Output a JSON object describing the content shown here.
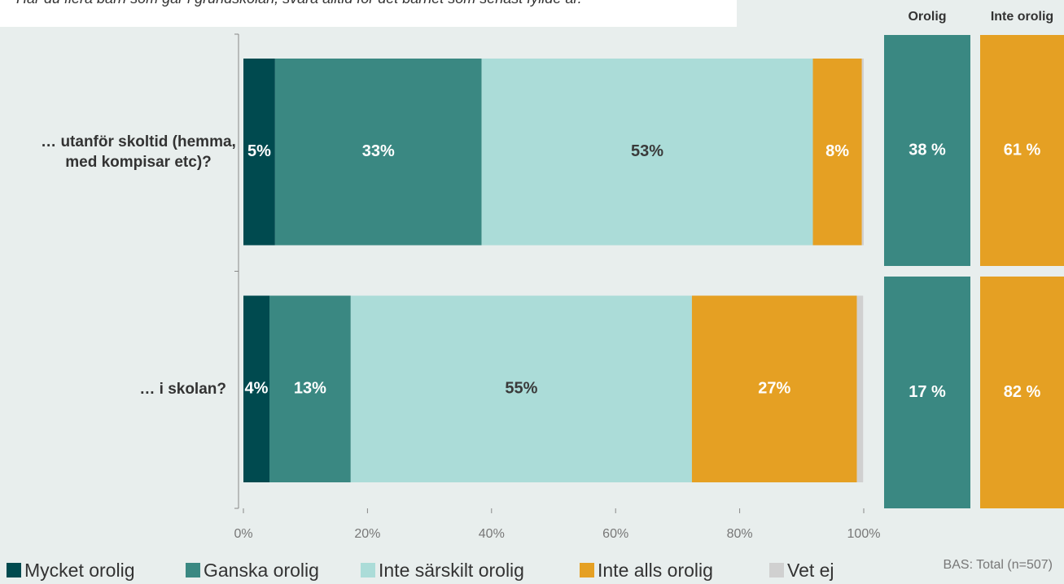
{
  "chart_data": {
    "type": "stacked_bar_horizontal",
    "subtitle": "Har du flera barn som går i grundskolan, svara alltid för det barnet som senast fyllde år.",
    "categories": [
      "… utanför skoltid (hemma, med kompisar etc)?",
      "… i skolan?"
    ],
    "series": [
      {
        "name": "Mycket orolig",
        "color": "#004a4f",
        "values": [
          5.1,
          4.2
        ],
        "value_labels": [
          "5%",
          "4%"
        ],
        "label_color": "#ffffff"
      },
      {
        "name": "Ganska orolig",
        "color": "#3a8882",
        "values": [
          33.3,
          13.1
        ],
        "value_labels": [
          "33%",
          "13%"
        ],
        "label_color": "#ffffff"
      },
      {
        "name": "Inte särskilt orolig",
        "color": "#abdcd8",
        "values": [
          53.4,
          55.0
        ],
        "value_labels": [
          "53%",
          "55%"
        ],
        "label_color": "#3a3a3a"
      },
      {
        "name": "Inte alls orolig",
        "color": "#e5a023",
        "values": [
          7.9,
          26.6
        ],
        "value_labels": [
          "8%",
          "27%"
        ],
        "label_color": "#ffffff"
      },
      {
        "name": "Vet ej",
        "color": "#d0d0d0",
        "values": [
          0.3,
          1.0
        ],
        "value_labels": [
          null,
          null
        ],
        "label_color": "#ffffff"
      }
    ],
    "xlim": [
      0,
      100
    ],
    "xticks": [
      {
        "value": 0,
        "label": "0%"
      },
      {
        "value": 20,
        "label": "20%"
      },
      {
        "value": 40,
        "label": "40%"
      },
      {
        "value": 60,
        "label": "60%"
      },
      {
        "value": 80,
        "label": "80%"
      },
      {
        "value": 100,
        "label": "100%"
      }
    ],
    "summary": {
      "headers": [
        "Orolig",
        "Inte orolig"
      ],
      "colors": [
        "#3a8882",
        "#e5a023"
      ],
      "rows": [
        [
          "38 %",
          "61 %"
        ],
        [
          "17 %",
          "82 %"
        ]
      ]
    },
    "note": "BAS: Total (n=507)"
  }
}
